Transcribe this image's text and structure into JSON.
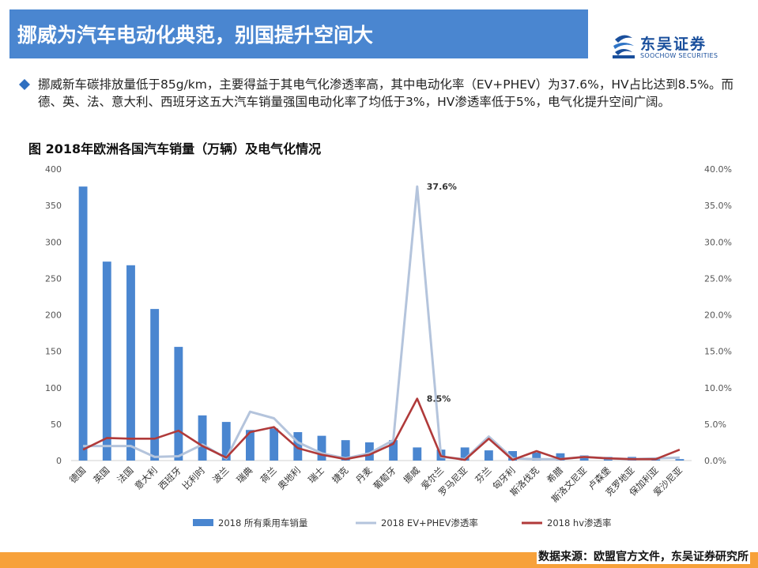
{
  "header": {
    "title": "挪威为汽车电动化典范，别国提升空间大",
    "logo_name": "东吴证券",
    "logo_en": "SOOCHOW SECURITIES"
  },
  "summary": {
    "text": "挪威新车碳排放量低于85g/km，主要得益于其电气化渗透率高，其中电动化率（EV+PHEV）为37.6%，HV占比达到8.5%。而德、英、法、意大利、西班牙这五大汽车销量强国电动化率了均低于3%，HV渗透率低于5%，电气化提升空间广阔。"
  },
  "footer": {
    "source": "数据来源：欧盟官方文件，东吴证券研究所"
  },
  "colors": {
    "bar": "#4a86d0",
    "ev_line": "#b4c4dc",
    "hv_line": "#b03a3a",
    "title_bar": "#4a86d0",
    "bottom_bar": "#f7a13a"
  },
  "chart_data": {
    "type": "bar",
    "title": "图  2018年欧洲各国汽车销量（万辆）及电气化情况",
    "categories": [
      "德国",
      "英国",
      "法国",
      "意大利",
      "西班牙",
      "比利时",
      "波兰",
      "瑞典",
      "荷兰",
      "奥地利",
      "瑞士",
      "捷克",
      "丹麦",
      "葡萄牙",
      "挪威",
      "爱尔兰",
      "罗马尼亚",
      "芬兰",
      "匈牙利",
      "斯洛伐克",
      "希腊",
      "斯洛文尼亚",
      "卢森堡",
      "克罗地亚",
      "保加利亚",
      "爱沙尼亚"
    ],
    "series": [
      {
        "name": "2018 所有乘用车销量",
        "type": "bar",
        "axis": "left",
        "values": [
          376,
          273,
          268,
          208,
          156,
          62,
          53,
          42,
          44,
          39,
          34,
          28,
          25,
          28,
          18,
          15,
          18,
          14,
          13,
          11,
          10,
          7,
          5,
          5,
          4,
          2
        ]
      },
      {
        "name": "2018 EV+PHEV渗透率",
        "type": "line",
        "axis": "right",
        "values": [
          2.0,
          2.0,
          2.0,
          0.5,
          0.6,
          2.2,
          0.3,
          6.7,
          5.8,
          2.5,
          1.0,
          0.3,
          1.0,
          2.8,
          37.6,
          0.5,
          0.2,
          3.3,
          0.3,
          0.2,
          0.2,
          0.5,
          0.3,
          0.2,
          0.3,
          0.4
        ]
      },
      {
        "name": "2018 hv渗透率",
        "type": "line",
        "axis": "right",
        "values": [
          1.5,
          3.1,
          3.0,
          3.0,
          4.1,
          2.0,
          0.4,
          3.9,
          4.6,
          1.7,
          0.8,
          0.2,
          0.8,
          2.3,
          8.5,
          0.6,
          0.1,
          3.0,
          0.1,
          1.3,
          0.2,
          0.5,
          0.3,
          0.2,
          0.2,
          1.5
        ]
      }
    ],
    "y_left": {
      "min": 0,
      "max": 400,
      "ticks": [
        "0",
        "50",
        "100",
        "150",
        "200",
        "250",
        "300",
        "350",
        "400"
      ]
    },
    "y_right": {
      "min": 0,
      "max": 40,
      "ticks": [
        "0.0%",
        "5.0%",
        "10.0%",
        "15.0%",
        "20.0%",
        "25.0%",
        "30.0%",
        "35.0%",
        "40.0%"
      ]
    },
    "annotations": [
      {
        "series": 1,
        "index": 14,
        "text": "37.6%"
      },
      {
        "series": 2,
        "index": 14,
        "text": "8.5%"
      }
    ],
    "grid": false,
    "legend_position": "bottom"
  }
}
